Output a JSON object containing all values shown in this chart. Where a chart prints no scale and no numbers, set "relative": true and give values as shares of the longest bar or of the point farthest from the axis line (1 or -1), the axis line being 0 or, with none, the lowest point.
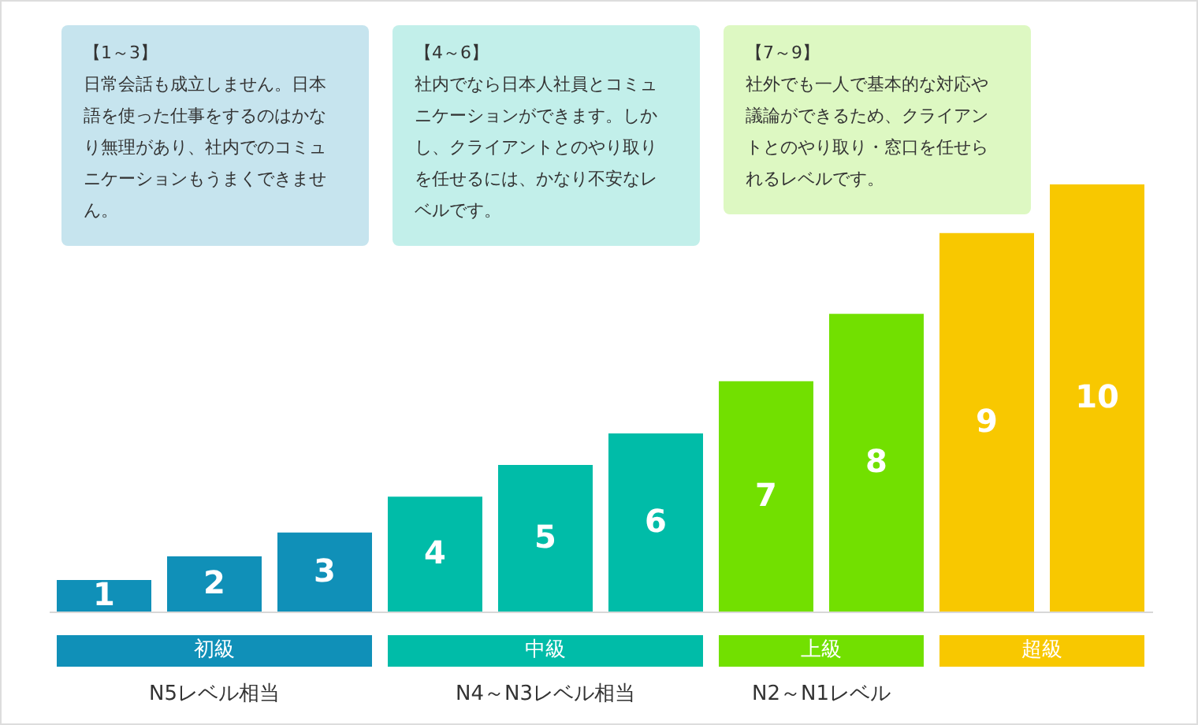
{
  "chart_data": {
    "type": "bar",
    "relative": true,
    "tick_labels": false,
    "categories": [
      "1",
      "2",
      "3",
      "4",
      "5",
      "6",
      "7",
      "8",
      "9",
      "10"
    ],
    "values": [
      0.074,
      0.129,
      0.185,
      0.269,
      0.343,
      0.417,
      0.539,
      0.697,
      0.886,
      1
    ],
    "colors": [
      "#1090b8",
      "#1090b8",
      "#1090b8",
      "#00bca8",
      "#00bca8",
      "#00bca8",
      "#72e000",
      "#72e000",
      "#f8c800",
      "#f8c800"
    ],
    "annotations": [
      "【1～3】",
      "日常会話も成立しません。日本語を使った仕事をするのはかなり無理があり、社内でのコミュニケーションもうまくできません。",
      "【4～6】",
      "社内でなら日本人社員とコミュニケーションができます。しかし、クライアントとのやり取りを任せるには、かなり不安なレベルです。",
      "【7～9】",
      "社外でも一人で基本的な対応や議論ができるため、クライアントとのやり取り・窓口を任せられるレベルです。",
      "初級",
      "中級",
      "上級",
      "超級",
      "N5レベル相当",
      "N4～N3レベル相当",
      "N2～N1レベル"
    ]
  }
}
